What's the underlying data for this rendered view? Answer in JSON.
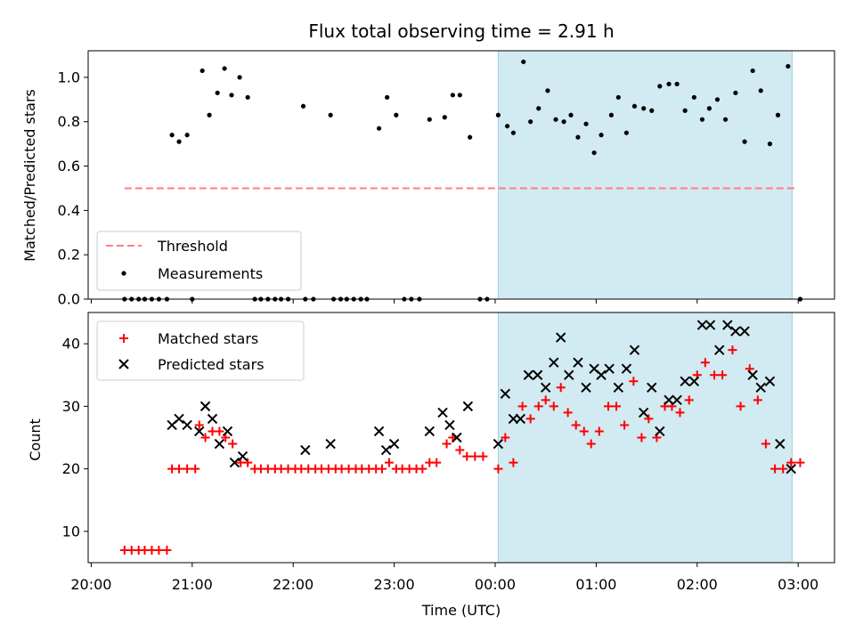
{
  "chart_data": {
    "title": "Flux total observing time = 2.91 h",
    "xlabel": "Time (UTC)",
    "x_ticks": [
      "20:00",
      "21:00",
      "22:00",
      "23:00",
      "00:00",
      "01:00",
      "02:00",
      "03:00"
    ],
    "x_range_hours": [
      19.97,
      27.36
    ],
    "highlight": {
      "start_hour": 24.03,
      "end_hour": 26.94,
      "color": "#add8e6"
    },
    "panels": [
      {
        "type": "scatter",
        "ylabel": "Matched/Predicted stars",
        "ylim": [
          0,
          1.12
        ],
        "y_ticks": [
          "0.0",
          "0.2",
          "0.4",
          "0.6",
          "0.8",
          "1.0"
        ],
        "legend": {
          "placement": "lower-left",
          "entries": [
            "Threshold",
            "Measurements"
          ]
        },
        "threshold": {
          "name": "Threshold",
          "value": 0.5,
          "x_start": 20.33,
          "x_end": 26.98,
          "color": "#ff7f7f"
        },
        "series": [
          {
            "name": "Measurements",
            "marker": "dot",
            "color": "#000000",
            "points": [
              [
                20.33,
                0
              ],
              [
                20.4,
                0
              ],
              [
                20.47,
                0
              ],
              [
                20.53,
                0
              ],
              [
                20.6,
                0
              ],
              [
                20.67,
                0
              ],
              [
                20.75,
                0
              ],
              [
                20.8,
                0.74
              ],
              [
                20.87,
                0.71
              ],
              [
                20.95,
                0.74
              ],
              [
                21.0,
                0
              ],
              [
                21.1,
                1.03
              ],
              [
                21.17,
                0.83
              ],
              [
                21.25,
                0.93
              ],
              [
                21.32,
                1.04
              ],
              [
                21.39,
                0.92
              ],
              [
                21.47,
                1.0
              ],
              [
                21.55,
                0.91
              ],
              [
                21.62,
                0
              ],
              [
                21.68,
                0
              ],
              [
                21.75,
                0
              ],
              [
                21.82,
                0
              ],
              [
                21.88,
                0
              ],
              [
                21.95,
                0
              ],
              [
                22.1,
                0.87
              ],
              [
                22.12,
                0
              ],
              [
                22.2,
                0
              ],
              [
                22.37,
                0.83
              ],
              [
                22.4,
                0
              ],
              [
                22.47,
                0
              ],
              [
                22.53,
                0
              ],
              [
                22.6,
                0
              ],
              [
                22.67,
                0
              ],
              [
                22.73,
                0
              ],
              [
                22.85,
                0.77
              ],
              [
                22.93,
                0.91
              ],
              [
                23.02,
                0.83
              ],
              [
                23.1,
                0
              ],
              [
                23.17,
                0
              ],
              [
                23.25,
                0
              ],
              [
                23.35,
                0.81
              ],
              [
                23.5,
                0.82
              ],
              [
                23.58,
                0.92
              ],
              [
                23.65,
                0.92
              ],
              [
                23.75,
                0.73
              ],
              [
                23.85,
                0
              ],
              [
                23.92,
                0
              ],
              [
                24.03,
                0.83
              ],
              [
                24.12,
                0.78
              ],
              [
                24.18,
                0.75
              ],
              [
                24.28,
                1.07
              ],
              [
                24.35,
                0.8
              ],
              [
                24.43,
                0.86
              ],
              [
                24.52,
                0.94
              ],
              [
                24.6,
                0.81
              ],
              [
                24.68,
                0.8
              ],
              [
                24.75,
                0.83
              ],
              [
                24.82,
                0.73
              ],
              [
                24.9,
                0.79
              ],
              [
                24.98,
                0.66
              ],
              [
                25.05,
                0.74
              ],
              [
                25.15,
                0.83
              ],
              [
                25.22,
                0.91
              ],
              [
                25.3,
                0.75
              ],
              [
                25.38,
                0.87
              ],
              [
                25.47,
                0.86
              ],
              [
                25.55,
                0.85
              ],
              [
                25.63,
                0.96
              ],
              [
                25.72,
                0.97
              ],
              [
                25.8,
                0.97
              ],
              [
                25.88,
                0.85
              ],
              [
                25.97,
                0.91
              ],
              [
                26.05,
                0.81
              ],
              [
                26.12,
                0.86
              ],
              [
                26.2,
                0.9
              ],
              [
                26.28,
                0.81
              ],
              [
                26.38,
                0.93
              ],
              [
                26.47,
                0.71
              ],
              [
                26.55,
                1.03
              ],
              [
                26.63,
                0.94
              ],
              [
                26.72,
                0.7
              ],
              [
                26.8,
                0.83
              ],
              [
                26.9,
                1.05
              ],
              [
                27.02,
                0
              ]
            ]
          }
        ]
      },
      {
        "type": "scatter",
        "ylabel": "Count",
        "ylim": [
          5,
          45
        ],
        "y_ticks": [
          "10",
          "20",
          "30",
          "40"
        ],
        "legend": {
          "placement": "upper-left",
          "entries": [
            "Matched stars",
            "Predicted stars"
          ]
        },
        "series": [
          {
            "name": "Matched stars",
            "marker": "plus",
            "color": "#ff0000",
            "points": [
              [
                20.33,
                7
              ],
              [
                20.4,
                7
              ],
              [
                20.47,
                7
              ],
              [
                20.53,
                7
              ],
              [
                20.6,
                7
              ],
              [
                20.67,
                7
              ],
              [
                20.75,
                7
              ],
              [
                20.8,
                20
              ],
              [
                20.87,
                20
              ],
              [
                20.95,
                20
              ],
              [
                21.03,
                20
              ],
              [
                21.07,
                27
              ],
              [
                21.13,
                25
              ],
              [
                21.2,
                26
              ],
              [
                21.27,
                26
              ],
              [
                21.33,
                25
              ],
              [
                21.4,
                24
              ],
              [
                21.48,
                21
              ],
              [
                21.55,
                21
              ],
              [
                21.62,
                20
              ],
              [
                21.68,
                20
              ],
              [
                21.75,
                20
              ],
              [
                21.82,
                20
              ],
              [
                21.88,
                20
              ],
              [
                21.95,
                20
              ],
              [
                22.02,
                20
              ],
              [
                22.08,
                20
              ],
              [
                22.15,
                20
              ],
              [
                22.22,
                20
              ],
              [
                22.28,
                20
              ],
              [
                22.35,
                20
              ],
              [
                22.42,
                20
              ],
              [
                22.48,
                20
              ],
              [
                22.55,
                20
              ],
              [
                22.62,
                20
              ],
              [
                22.68,
                20
              ],
              [
                22.75,
                20
              ],
              [
                22.82,
                20
              ],
              [
                22.88,
                20
              ],
              [
                22.95,
                21
              ],
              [
                23.02,
                20
              ],
              [
                23.08,
                20
              ],
              [
                23.15,
                20
              ],
              [
                23.22,
                20
              ],
              [
                23.28,
                20
              ],
              [
                23.35,
                21
              ],
              [
                23.42,
                21
              ],
              [
                23.52,
                24
              ],
              [
                23.58,
                25
              ],
              [
                23.65,
                23
              ],
              [
                23.72,
                22
              ],
              [
                23.8,
                22
              ],
              [
                23.88,
                22
              ],
              [
                24.03,
                20
              ],
              [
                24.1,
                25
              ],
              [
                24.18,
                21
              ],
              [
                24.27,
                30
              ],
              [
                24.35,
                28
              ],
              [
                24.43,
                30
              ],
              [
                24.5,
                31
              ],
              [
                24.58,
                30
              ],
              [
                24.65,
                33
              ],
              [
                24.72,
                29
              ],
              [
                24.8,
                27
              ],
              [
                24.88,
                26
              ],
              [
                24.95,
                24
              ],
              [
                25.03,
                26
              ],
              [
                25.12,
                30
              ],
              [
                25.2,
                30
              ],
              [
                25.28,
                27
              ],
              [
                25.37,
                34
              ],
              [
                25.45,
                25
              ],
              [
                25.52,
                28
              ],
              [
                25.6,
                25
              ],
              [
                25.68,
                30
              ],
              [
                25.75,
                30
              ],
              [
                25.83,
                29
              ],
              [
                25.92,
                31
              ],
              [
                26.0,
                35
              ],
              [
                26.08,
                37
              ],
              [
                26.17,
                35
              ],
              [
                26.25,
                35
              ],
              [
                26.35,
                39
              ],
              [
                26.43,
                30
              ],
              [
                26.52,
                36
              ],
              [
                26.6,
                31
              ],
              [
                26.68,
                24
              ],
              [
                26.77,
                20
              ],
              [
                26.85,
                20
              ],
              [
                26.93,
                21
              ],
              [
                27.02,
                21
              ]
            ]
          },
          {
            "name": "Predicted stars",
            "marker": "cross",
            "color": "#000000",
            "points": [
              [
                20.8,
                27
              ],
              [
                20.87,
                28
              ],
              [
                20.95,
                27
              ],
              [
                21.07,
                26
              ],
              [
                21.13,
                30
              ],
              [
                21.2,
                28
              ],
              [
                21.27,
                24
              ],
              [
                21.35,
                26
              ],
              [
                21.42,
                21
              ],
              [
                21.5,
                22
              ],
              [
                22.12,
                23
              ],
              [
                22.37,
                24
              ],
              [
                22.85,
                26
              ],
              [
                22.92,
                23
              ],
              [
                23.0,
                24
              ],
              [
                23.35,
                26
              ],
              [
                23.48,
                29
              ],
              [
                23.55,
                27
              ],
              [
                23.62,
                25
              ],
              [
                23.73,
                30
              ],
              [
                24.03,
                24
              ],
              [
                24.1,
                32
              ],
              [
                24.18,
                28
              ],
              [
                24.25,
                28
              ],
              [
                24.33,
                35
              ],
              [
                24.42,
                35
              ],
              [
                24.5,
                33
              ],
              [
                24.58,
                37
              ],
              [
                24.65,
                41
              ],
              [
                24.73,
                35
              ],
              [
                24.82,
                37
              ],
              [
                24.9,
                33
              ],
              [
                24.98,
                36
              ],
              [
                25.05,
                35
              ],
              [
                25.13,
                36
              ],
              [
                25.22,
                33
              ],
              [
                25.3,
                36
              ],
              [
                25.38,
                39
              ],
              [
                25.47,
                29
              ],
              [
                25.55,
                33
              ],
              [
                25.63,
                26
              ],
              [
                25.72,
                31
              ],
              [
                25.8,
                31
              ],
              [
                25.88,
                34
              ],
              [
                25.97,
                34
              ],
              [
                26.05,
                43
              ],
              [
                26.13,
                43
              ],
              [
                26.22,
                39
              ],
              [
                26.3,
                43
              ],
              [
                26.38,
                42
              ],
              [
                26.47,
                42
              ],
              [
                26.55,
                35
              ],
              [
                26.63,
                33
              ],
              [
                26.72,
                34
              ],
              [
                26.82,
                24
              ],
              [
                26.93,
                20
              ]
            ]
          }
        ]
      }
    ]
  }
}
